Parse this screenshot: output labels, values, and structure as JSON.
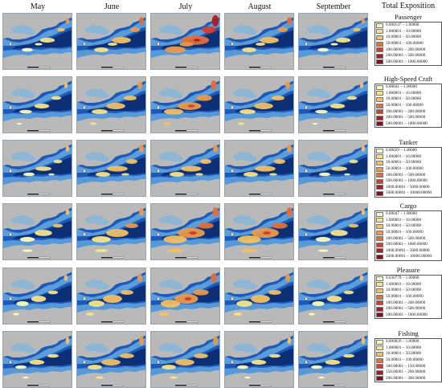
{
  "header": {
    "months": [
      "May",
      "June",
      "July",
      "August",
      "September"
    ],
    "legend_heading": "Total Exposition"
  },
  "ship_types": [
    {
      "name": "Passenger",
      "ranges": [
        "0.000147 – 1.00000",
        "1.000001 – 10.00000",
        "10.00001 – 50.00000",
        "50.00001 – 100.00000",
        "100.00001 – 200.00000",
        "200.00001 – 500.00000",
        "500.00001 – 1000.00000"
      ],
      "intensity": [
        1,
        2,
        4,
        2,
        1
      ]
    },
    {
      "name": "High-Speed Craft",
      "ranges": [
        "0.00041 – 1.00000",
        "1.000001 – 10.00000",
        "10.00001 – 50.00000",
        "50.00001 – 100.00000",
        "100.00001 – 200.00000",
        "200.00001 – 500.00000",
        "500.00001 – 1000.00000"
      ],
      "intensity": [
        1,
        2,
        3,
        2,
        1
      ]
    },
    {
      "name": "Tanker",
      "ranges": [
        "0.00029 – 1.00000",
        "1.000001 – 10.00000",
        "10.00001 – 50.00000",
        "50.00001 – 100.00000",
        "100.00001 – 500.00000",
        "500.00001 – 1000.00000",
        "1000.00001 – 5000.00000",
        "5000.00001 – 10000.00000"
      ],
      "intensity": [
        1,
        2,
        2,
        2,
        1
      ]
    },
    {
      "name": "Cargo",
      "ranges": [
        "0.00047 – 1.00000",
        "1.000001 – 10.00000",
        "10.00001 – 50.00000",
        "50.00001 – 100.00000",
        "100.00001 – 500.00000",
        "500.00001 – 1000.00000",
        "1000.00001 – 5000.00000",
        "5000.00001 – 10000.00000"
      ],
      "intensity": [
        1,
        2,
        3,
        3,
        1
      ]
    },
    {
      "name": "Pleasure",
      "ranges": [
        "0.030778 – 1.00000",
        "1.000001 – 10.00000",
        "10.00001 – 50.00000",
        "50.00001 – 100.00000",
        "100.00001 – 200.00000",
        "200.00001 – 500.00000",
        "500.00001 – 1000.00000"
      ],
      "intensity": [
        1,
        2,
        3,
        2,
        1
      ]
    },
    {
      "name": "Fishing",
      "ranges": [
        "0.000826 – 1.00000",
        "1.000001 – 10.00000",
        "10.00001 – 50.00000",
        "50.00001 – 100.00000",
        "100.00001 – 150.00000",
        "150.00001 – 200.00000",
        "200.00001 – 300.00000"
      ],
      "intensity": [
        1,
        2,
        2,
        1,
        1
      ]
    }
  ],
  "colors": {
    "land": "#b9b9b9",
    "sea_deep": "#0b2a6e",
    "sea_mid": "#1d59b8",
    "sea_shallow": "#6fb4e6",
    "ramp": [
      "#fbfbc0",
      "#f7e48a",
      "#f2c065",
      "#eb9a4c",
      "#e2703a",
      "#d33d2c",
      "#b01a22",
      "#8a0b1c"
    ]
  },
  "icons": {
    "north_arrow": "north-arrow-icon"
  }
}
